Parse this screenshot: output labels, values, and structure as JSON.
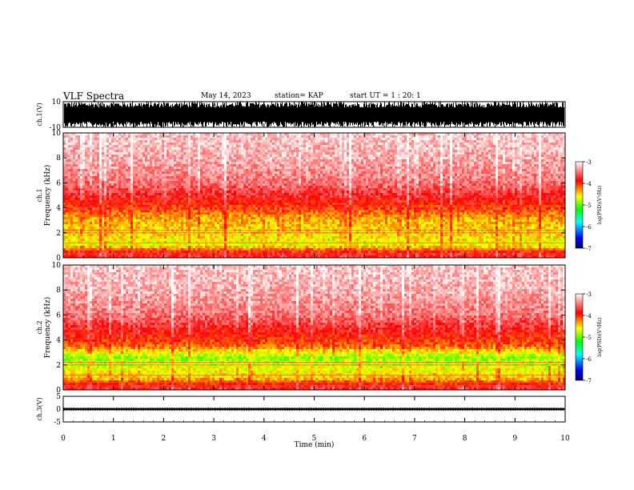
{
  "header": {
    "title": "VLF Spectra",
    "date": "May 14, 2023",
    "station": "station= KAP",
    "start": "start UT =  1 : 20: 1"
  },
  "chart_data": [
    {
      "type": "line",
      "panel": "ch1-waveform",
      "ylabel": "ch.1(V)",
      "ylim": [
        -10,
        10
      ],
      "yticks": [
        "10",
        "-10"
      ],
      "xlim": [
        0,
        10
      ],
      "description_values": {
        "envelope_min": -10,
        "envelope_max": 10
      }
    },
    {
      "type": "heatmap",
      "panel": "ch1-spectrogram",
      "ylabel": "ch.1 Frequency (kHz)",
      "ylim": [
        0,
        10
      ],
      "yticks": [
        "0",
        "2",
        "4",
        "6",
        "8",
        "10"
      ],
      "xlim": [
        0,
        10
      ],
      "colorbar": {
        "label": "log(PSD)(V²/Hz)",
        "range": [
          -7,
          -3
        ],
        "ticks": [
          "-3",
          "-4",
          "-5",
          "-6",
          "-7"
        ]
      },
      "frequency_profile_log_psd": [
        {
          "f": 0.3,
          "v": -3.8
        },
        {
          "f": 1.0,
          "v": -4.6
        },
        {
          "f": 2.0,
          "v": -4.5
        },
        {
          "f": 3.0,
          "v": -4.4
        },
        {
          "f": 3.7,
          "v": -4.2
        },
        {
          "f": 4.5,
          "v": -3.9
        },
        {
          "f": 6.0,
          "v": -3.5
        },
        {
          "f": 8.0,
          "v": -3.3
        },
        {
          "f": 10.0,
          "v": -3.2
        }
      ]
    },
    {
      "type": "heatmap",
      "panel": "ch2-spectrogram",
      "ylabel": "ch.2 Frequency (kHz)",
      "ylim": [
        0,
        10
      ],
      "yticks": [
        "0",
        "2",
        "4",
        "6",
        "8",
        "10"
      ],
      "xlim": [
        0,
        10
      ],
      "colorbar": {
        "label": "log(PSD)(V²/Hz)",
        "range": [
          -7,
          -3
        ],
        "ticks": [
          "-3",
          "-4",
          "-5",
          "-6",
          "-7"
        ]
      },
      "frequency_profile_log_psd": [
        {
          "f": 0.3,
          "v": -3.8
        },
        {
          "f": 1.0,
          "v": -4.5
        },
        {
          "f": 2.0,
          "v": -4.7
        },
        {
          "f": 2.6,
          "v": -4.9
        },
        {
          "f": 3.5,
          "v": -4.2
        },
        {
          "f": 4.5,
          "v": -3.9
        },
        {
          "f": 6.0,
          "v": -3.5
        },
        {
          "f": 8.0,
          "v": -3.3
        },
        {
          "f": 10.0,
          "v": -3.2
        }
      ]
    },
    {
      "type": "line",
      "panel": "ch3-waveform",
      "ylabel": "ch.3(V)",
      "ylim": [
        -5,
        5
      ],
      "yticks": [
        "5",
        "0",
        "-5"
      ],
      "xlim": [
        0,
        10
      ],
      "xlabel": "Time (min)",
      "xticks": [
        "0",
        "1",
        "2",
        "3",
        "4",
        "5",
        "6",
        "7",
        "8",
        "9",
        "10"
      ],
      "description_values": {
        "envelope_min": -0.4,
        "envelope_max": 0.4
      }
    }
  ],
  "colors": {
    "scale": [
      "#000080",
      "#0000ff",
      "#00ffff",
      "#00ff00",
      "#ffff00",
      "#ff0000",
      "#ffffff"
    ],
    "ink": "#000000"
  }
}
